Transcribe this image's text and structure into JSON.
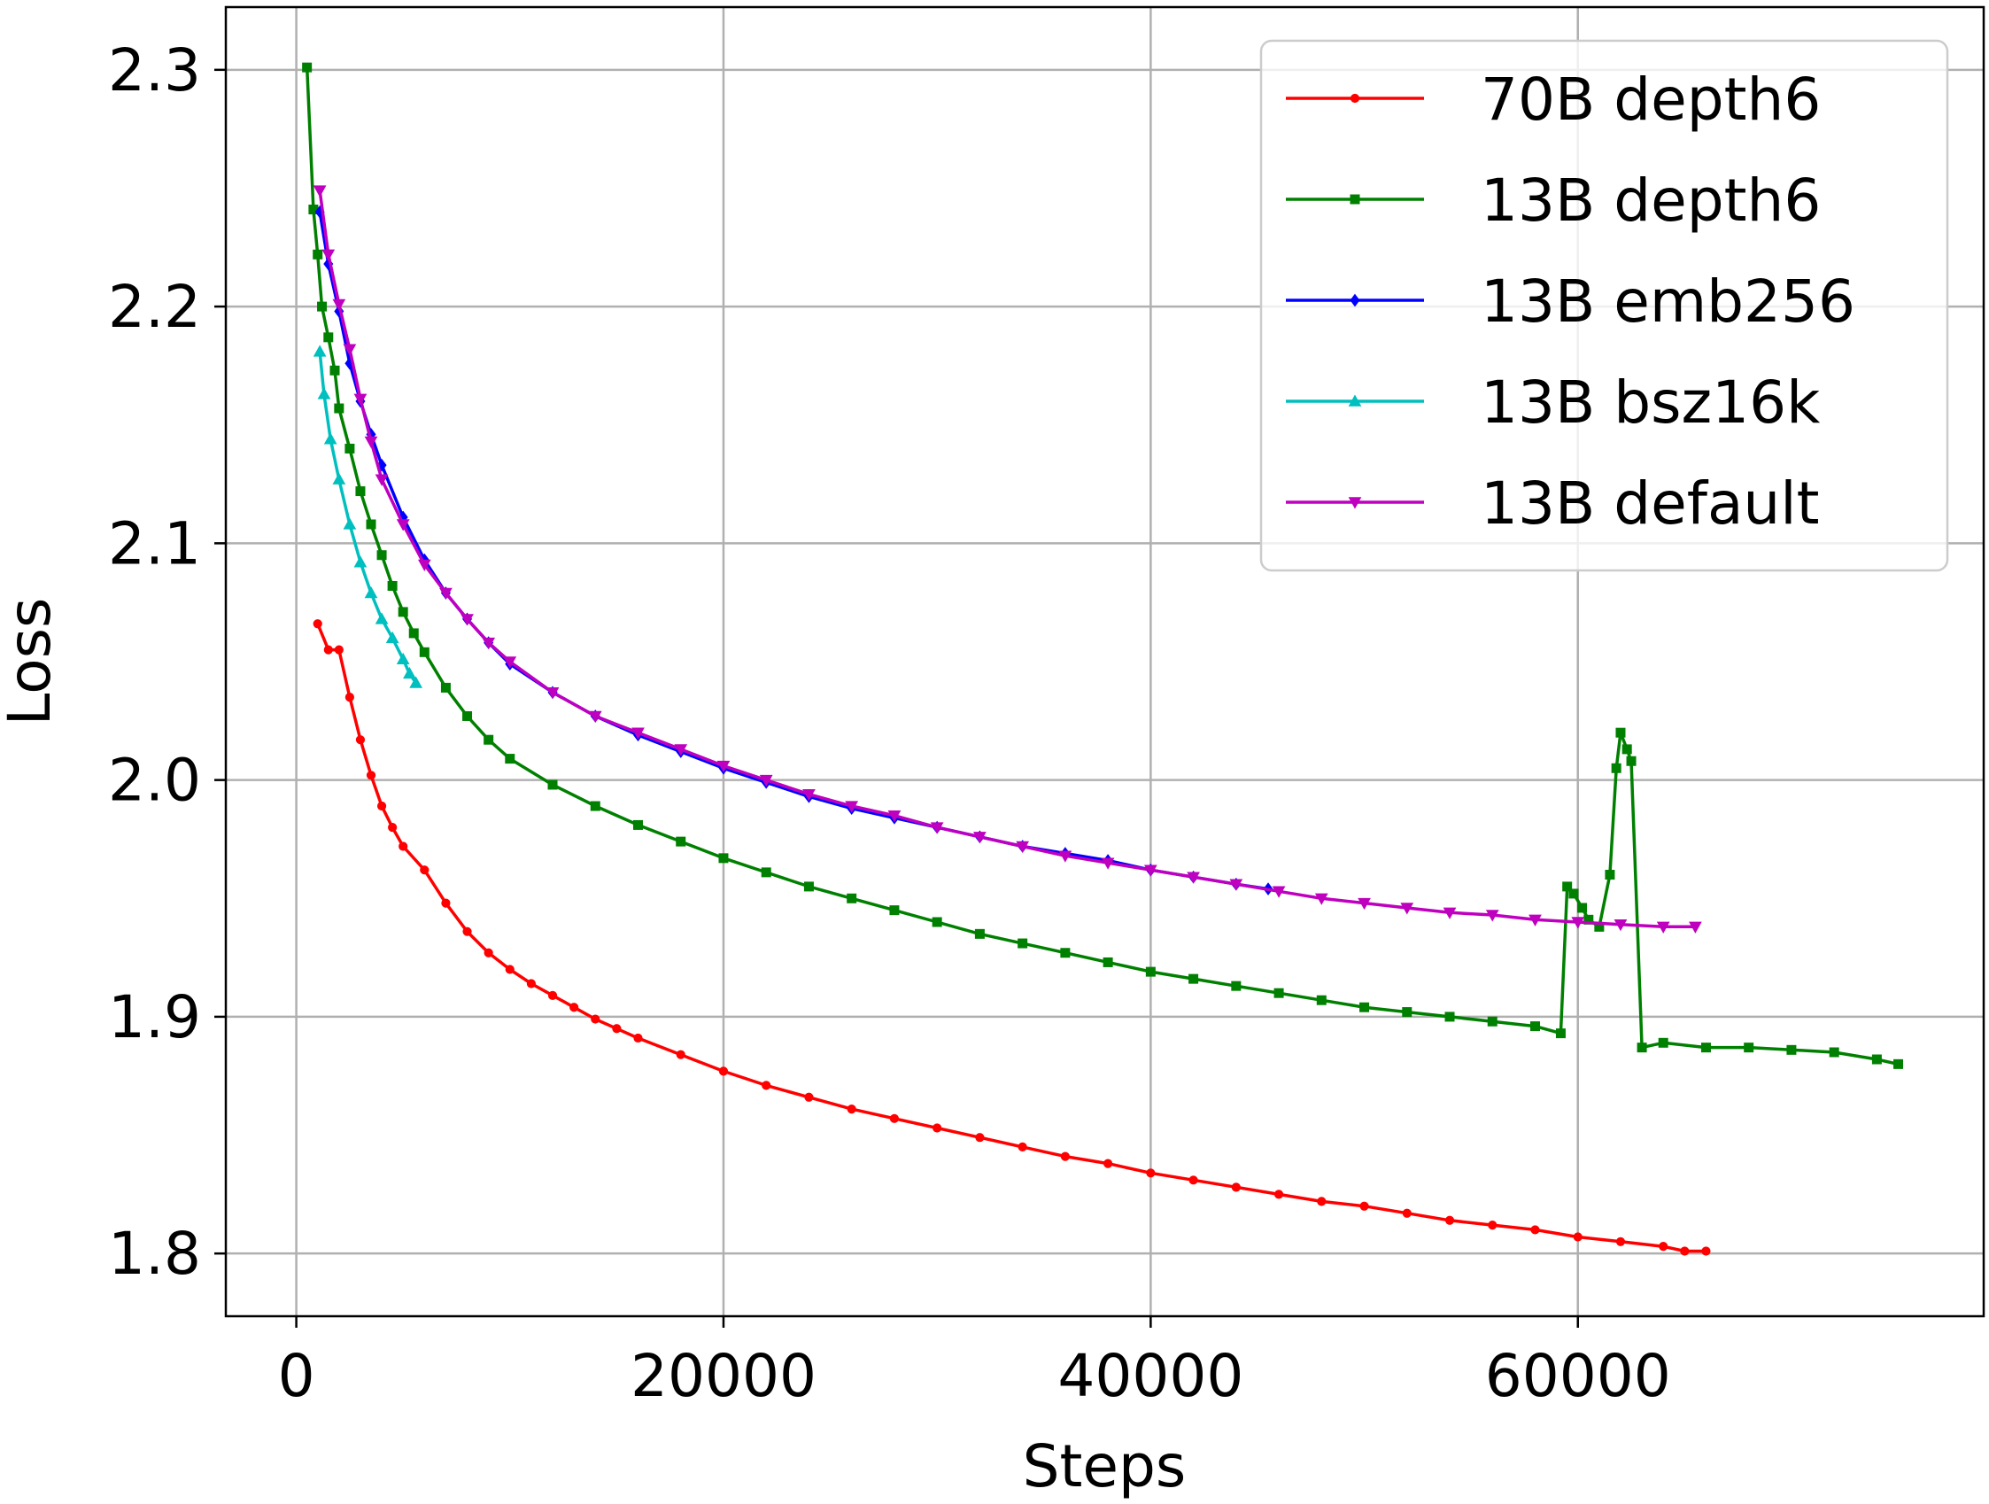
{
  "chart_data": {
    "type": "line",
    "title": "",
    "xlabel": "Steps",
    "ylabel": "Loss",
    "xlim": [
      -3300,
      79000
    ],
    "ylim": [
      1.7735,
      2.3265
    ],
    "xticks": [
      0,
      20000,
      40000,
      60000
    ],
    "xtick_labels": [
      "0",
      "20000",
      "40000",
      "60000"
    ],
    "yticks": [
      1.8,
      1.9,
      2.0,
      2.1,
      2.2,
      2.3
    ],
    "ytick_labels": [
      "1.8",
      "1.9",
      "2.0",
      "2.1",
      "2.2",
      "2.3"
    ],
    "grid": true,
    "legend_position": "top-right",
    "series": [
      {
        "name": "70B depth6",
        "color": "#ff0000",
        "marker": "circle",
        "x": [
          1000,
          1500,
          2000,
          2500,
          3000,
          3500,
          4000,
          4500,
          5000,
          6000,
          7000,
          8000,
          9000,
          10000,
          11000,
          12000,
          13000,
          14000,
          15000,
          16000,
          18000,
          20000,
          22000,
          24000,
          26000,
          28000,
          30000,
          32000,
          34000,
          36000,
          38000,
          40000,
          42000,
          44000,
          46000,
          48000,
          50000,
          52000,
          54000,
          56000,
          58000,
          60000,
          62000,
          64000,
          65000,
          66000
        ],
        "y": [
          2.066,
          2.055,
          2.055,
          2.035,
          2.017,
          2.002,
          1.989,
          1.98,
          1.972,
          1.962,
          1.948,
          1.936,
          1.927,
          1.92,
          1.914,
          1.909,
          1.904,
          1.899,
          1.895,
          1.891,
          1.884,
          1.877,
          1.871,
          1.866,
          1.861,
          1.857,
          1.853,
          1.849,
          1.845,
          1.841,
          1.838,
          1.834,
          1.831,
          1.828,
          1.825,
          1.822,
          1.82,
          1.817,
          1.814,
          1.812,
          1.81,
          1.807,
          1.805,
          1.803,
          1.801,
          1.801
        ]
      },
      {
        "name": "13B depth6",
        "color": "#008000",
        "marker": "square",
        "x": [
          500,
          800,
          1000,
          1200,
          1500,
          1800,
          2000,
          2500,
          3000,
          3500,
          4000,
          4500,
          5000,
          5500,
          6000,
          7000,
          8000,
          9000,
          10000,
          12000,
          14000,
          16000,
          18000,
          20000,
          22000,
          24000,
          26000,
          28000,
          30000,
          32000,
          34000,
          36000,
          38000,
          40000,
          42000,
          44000,
          46000,
          48000,
          50000,
          52000,
          54000,
          56000,
          58000,
          59200,
          59500,
          59800,
          60200,
          60500,
          61000,
          61500,
          61800,
          62000,
          62300,
          62500,
          63000,
          64000,
          66000,
          68000,
          70000,
          72000,
          74000,
          75000
        ],
        "y": [
          2.301,
          2.241,
          2.222,
          2.2,
          2.187,
          2.173,
          2.157,
          2.14,
          2.122,
          2.108,
          2.095,
          2.082,
          2.071,
          2.062,
          2.054,
          2.039,
          2.027,
          2.017,
          2.009,
          1.998,
          1.989,
          1.981,
          1.974,
          1.967,
          1.961,
          1.955,
          1.95,
          1.945,
          1.94,
          1.935,
          1.931,
          1.927,
          1.923,
          1.919,
          1.916,
          1.913,
          1.91,
          1.907,
          1.904,
          1.902,
          1.9,
          1.898,
          1.896,
          1.893,
          1.955,
          1.952,
          1.946,
          1.941,
          1.938,
          1.96,
          2.005,
          2.02,
          2.013,
          2.008,
          1.887,
          1.889,
          1.887,
          1.887,
          1.886,
          1.885,
          1.882,
          1.88
        ]
      },
      {
        "name": "13B emb256",
        "color": "#0000ff",
        "marker": "diamond",
        "x": [
          1100,
          1500,
          2000,
          2500,
          3000,
          3500,
          4000,
          5000,
          6000,
          7000,
          8000,
          9000,
          10000,
          12000,
          14000,
          16000,
          18000,
          20000,
          22000,
          24000,
          26000,
          28000,
          30000,
          32000,
          34000,
          36000,
          38000,
          40000,
          42000,
          44000,
          45500
        ],
        "y": [
          2.24,
          2.218,
          2.198,
          2.176,
          2.16,
          2.146,
          2.133,
          2.111,
          2.093,
          2.079,
          2.068,
          2.058,
          2.049,
          2.037,
          2.027,
          2.019,
          2.012,
          2.005,
          1.999,
          1.993,
          1.988,
          1.984,
          1.98,
          1.976,
          1.972,
          1.969,
          1.966,
          1.962,
          1.959,
          1.956,
          1.954
        ]
      },
      {
        "name": "13B bsz16k",
        "color": "#00bfbf",
        "marker": "triangle-up",
        "x": [
          1100,
          1300,
          1600,
          2000,
          2500,
          3000,
          3500,
          4000,
          4500,
          5000,
          5300,
          5600
        ],
        "y": [
          2.181,
          2.163,
          2.144,
          2.127,
          2.108,
          2.092,
          2.079,
          2.068,
          2.06,
          2.051,
          2.045,
          2.041
        ]
      },
      {
        "name": "13B default",
        "color": "#bf00bf",
        "marker": "triangle-down",
        "x": [
          1100,
          1500,
          2000,
          2500,
          3000,
          3500,
          4000,
          5000,
          6000,
          7000,
          8000,
          9000,
          10000,
          12000,
          14000,
          16000,
          18000,
          20000,
          22000,
          24000,
          26000,
          28000,
          30000,
          32000,
          34000,
          36000,
          38000,
          40000,
          42000,
          44000,
          46000,
          48000,
          50000,
          52000,
          54000,
          56000,
          58000,
          60000,
          62000,
          64000,
          65500
        ],
        "y": [
          2.249,
          2.222,
          2.201,
          2.182,
          2.161,
          2.143,
          2.127,
          2.108,
          2.091,
          2.079,
          2.068,
          2.058,
          2.05,
          2.037,
          2.027,
          2.02,
          2.013,
          2.006,
          2.0,
          1.994,
          1.989,
          1.985,
          1.98,
          1.976,
          1.972,
          1.968,
          1.965,
          1.962,
          1.959,
          1.956,
          1.953,
          1.95,
          1.948,
          1.946,
          1.944,
          1.943,
          1.941,
          1.94,
          1.939,
          1.938,
          1.938
        ]
      }
    ]
  }
}
